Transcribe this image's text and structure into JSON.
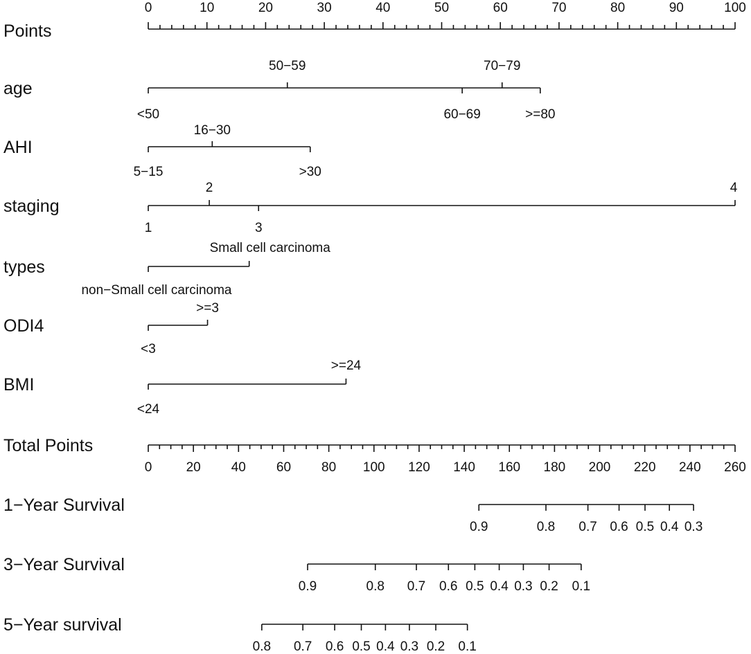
{
  "chart_data": {
    "type": "nomogram",
    "title": "",
    "points_scale": {
      "label": "Points",
      "min": 0,
      "max": 100,
      "major_step": 10,
      "minor_step": 2,
      "tick_labels": [
        "0",
        "10",
        "20",
        "30",
        "40",
        "50",
        "60",
        "70",
        "80",
        "90",
        "100"
      ]
    },
    "variables": [
      {
        "name": "age",
        "levels": [
          {
            "label": "<50",
            "points": 0,
            "pos": "below"
          },
          {
            "label": "50−59",
            "points": 23.7,
            "pos": "above"
          },
          {
            "label": "60−69",
            "points": 53.5,
            "pos": "below"
          },
          {
            "label": "70−79",
            "points": 60.3,
            "pos": "above"
          },
          {
            "label": ">=80",
            "points": 66.8,
            "pos": "below"
          }
        ]
      },
      {
        "name": "AHI",
        "levels": [
          {
            "label": "5−15",
            "points": 0,
            "pos": "below"
          },
          {
            "label": "16−30",
            "points": 10.9,
            "pos": "above"
          },
          {
            "label": ">30",
            "points": 27.6,
            "pos": "below"
          }
        ]
      },
      {
        "name": "staging",
        "levels": [
          {
            "label": "1",
            "points": 0,
            "pos": "below"
          },
          {
            "label": "2",
            "points": 10.4,
            "pos": "above"
          },
          {
            "label": "3",
            "points": 18.8,
            "pos": "below"
          },
          {
            "label": "4",
            "points": 100,
            "pos": "above"
          }
        ]
      },
      {
        "name": "types",
        "levels": [
          {
            "label": "non−Small cell carcinoma",
            "points": 0,
            "pos": "below"
          },
          {
            "label": "Small cell carcinoma",
            "points": 17.2,
            "pos": "above"
          }
        ]
      },
      {
        "name": "ODI4",
        "levels": [
          {
            "label": "<3",
            "points": 0,
            "pos": "below"
          },
          {
            "label": ">=3",
            "points": 10.1,
            "pos": "above"
          }
        ]
      },
      {
        "name": "BMI",
        "levels": [
          {
            "label": "<24",
            "points": 0,
            "pos": "below"
          },
          {
            "label": ">=24",
            "points": 33.7,
            "pos": "above"
          }
        ]
      }
    ],
    "total_points": {
      "label": "Total Points",
      "min": 0,
      "max": 260,
      "major_step": 20,
      "minor_step": 5,
      "tick_labels": [
        "0",
        "20",
        "40",
        "60",
        "80",
        "100",
        "120",
        "140",
        "160",
        "180",
        "200",
        "220",
        "240",
        "260"
      ]
    },
    "survival": [
      {
        "label": "1−Year Survival",
        "ticks": [
          {
            "label": "0.9",
            "total": 146.5
          },
          {
            "label": "0.8",
            "total": 176.2
          },
          {
            "label": "0.7",
            "total": 194.8
          },
          {
            "label": "0.6",
            "total": 208.6
          },
          {
            "label": "0.5",
            "total": 220.1
          },
          {
            "label": "0.4",
            "total": 230.9
          },
          {
            "label": "0.3",
            "total": 241.6
          }
        ]
      },
      {
        "label": "3−Year Survival",
        "ticks": [
          {
            "label": "0.9",
            "total": 70.6
          },
          {
            "label": "0.8",
            "total": 100.6
          },
          {
            "label": "0.7",
            "total": 118.8
          },
          {
            "label": "0.6",
            "total": 133.0
          },
          {
            "label": "0.5",
            "total": 144.7
          },
          {
            "label": "0.4",
            "total": 155.5
          },
          {
            "label": "0.3",
            "total": 166.2
          },
          {
            "label": "0.2",
            "total": 177.6
          },
          {
            "label": "0.1",
            "total": 191.8
          }
        ]
      },
      {
        "label": "5−Year survival",
        "ticks": [
          {
            "label": "0.8",
            "total": 50.3
          },
          {
            "label": "0.7",
            "total": 68.5
          },
          {
            "label": "0.6",
            "total": 82.6
          },
          {
            "label": "0.5",
            "total": 94.4
          },
          {
            "label": "0.4",
            "total": 105.1
          },
          {
            "label": "0.3",
            "total": 115.7
          },
          {
            "label": "0.2",
            "total": 127.4
          },
          {
            "label": "0.1",
            "total": 141.4
          }
        ]
      }
    ]
  }
}
